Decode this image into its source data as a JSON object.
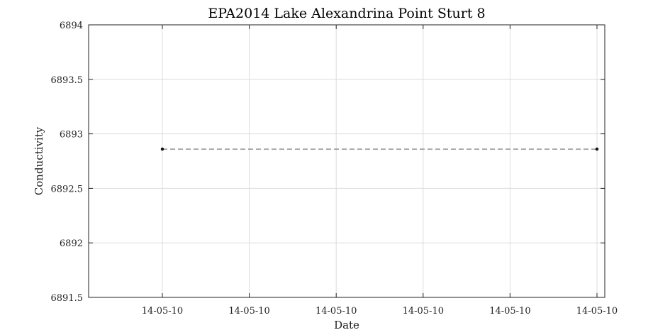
{
  "chart_data": {
    "type": "line",
    "title": "EPA2014 Lake Alexandrina Point Sturt 8",
    "xlabel": "Date",
    "ylabel": "Conductivity",
    "x": [
      "14-05-10",
      "14-05-10"
    ],
    "x_fraction": [
      0,
      1
    ],
    "series": [
      {
        "values": [
          6892.86,
          6892.86
        ]
      }
    ],
    "xtick_labels": [
      "14-05-10",
      "14-05-10",
      "14-05-10",
      "14-05-10",
      "14-05-10",
      "14-05-10"
    ],
    "xtick_fraction": [
      0,
      0.2,
      0.4,
      0.6,
      0.8,
      1
    ],
    "ylim": [
      6891.5,
      6894
    ],
    "yticks": [
      6891.5,
      6892,
      6892.5,
      6893,
      6893.5,
      6894
    ],
    "ytick_labels": [
      "6891.5",
      "6892",
      "6892.5",
      "6893",
      "6893.5",
      "6894"
    ],
    "grid": true,
    "line_style": "dashed",
    "line_color": "#7f7f7f",
    "marker_color": "#111111"
  }
}
